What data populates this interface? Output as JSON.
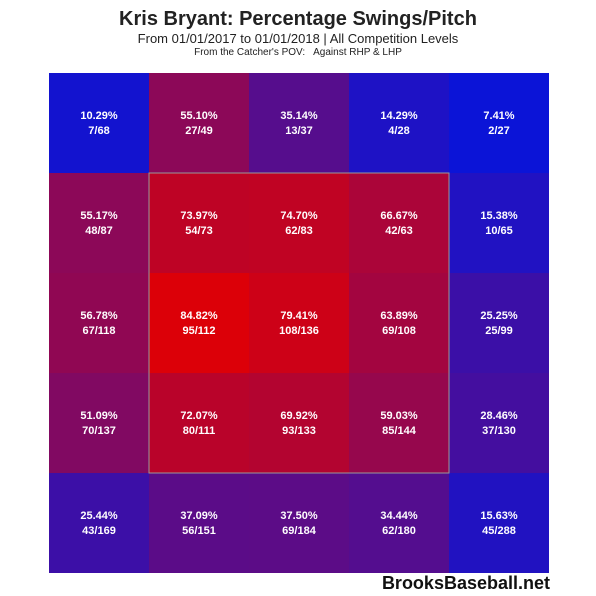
{
  "header": {
    "title": "Kris Bryant: Percentage Swings/Pitch",
    "subtitle": "From 01/01/2017 to 01/01/2018 | All Competition Levels",
    "pov": "From the Catcher's POV:",
    "split": "Against RHP & LHP"
  },
  "brand": "BrooksBaseball.net",
  "chart_data": {
    "type": "heatmap",
    "title": "Kris Bryant: Percentage Swings/Pitch",
    "rows": 5,
    "cols": 5,
    "cells": [
      [
        {
          "pct": "10.29%",
          "count": "7/68",
          "value": 10.29
        },
        {
          "pct": "55.10%",
          "count": "27/49",
          "value": 55.1
        },
        {
          "pct": "35.14%",
          "count": "13/37",
          "value": 35.14
        },
        {
          "pct": "14.29%",
          "count": "4/28",
          "value": 14.29
        },
        {
          "pct": "7.41%",
          "count": "2/27",
          "value": 7.41
        }
      ],
      [
        {
          "pct": "55.17%",
          "count": "48/87",
          "value": 55.17
        },
        {
          "pct": "73.97%",
          "count": "54/73",
          "value": 73.97
        },
        {
          "pct": "74.70%",
          "count": "62/83",
          "value": 74.7
        },
        {
          "pct": "66.67%",
          "count": "42/63",
          "value": 66.67
        },
        {
          "pct": "15.38%",
          "count": "10/65",
          "value": 15.38
        }
      ],
      [
        {
          "pct": "56.78%",
          "count": "67/118",
          "value": 56.78
        },
        {
          "pct": "84.82%",
          "count": "95/112",
          "value": 84.82
        },
        {
          "pct": "79.41%",
          "count": "108/136",
          "value": 79.41
        },
        {
          "pct": "63.89%",
          "count": "69/108",
          "value": 63.89
        },
        {
          "pct": "25.25%",
          "count": "25/99",
          "value": 25.25
        }
      ],
      [
        {
          "pct": "51.09%",
          "count": "70/137",
          "value": 51.09
        },
        {
          "pct": "72.07%",
          "count": "80/111",
          "value": 72.07
        },
        {
          "pct": "69.92%",
          "count": "93/133",
          "value": 69.92
        },
        {
          "pct": "59.03%",
          "count": "85/144",
          "value": 59.03
        },
        {
          "pct": "28.46%",
          "count": "37/130",
          "value": 28.46
        }
      ],
      [
        {
          "pct": "25.44%",
          "count": "43/169",
          "value": 25.44
        },
        {
          "pct": "37.09%",
          "count": "56/151",
          "value": 37.09
        },
        {
          "pct": "37.50%",
          "count": "69/184",
          "value": 37.5
        },
        {
          "pct": "34.44%",
          "count": "62/180",
          "value": 34.44
        },
        {
          "pct": "15.63%",
          "count": "45/288",
          "value": 15.63
        }
      ]
    ],
    "strike_zone": {
      "rows": [
        1,
        3
      ],
      "cols": [
        1,
        3
      ]
    },
    "color_low": "#0a14d8",
    "color_high": "#dc0008",
    "zone_outline_color": "#999999"
  }
}
